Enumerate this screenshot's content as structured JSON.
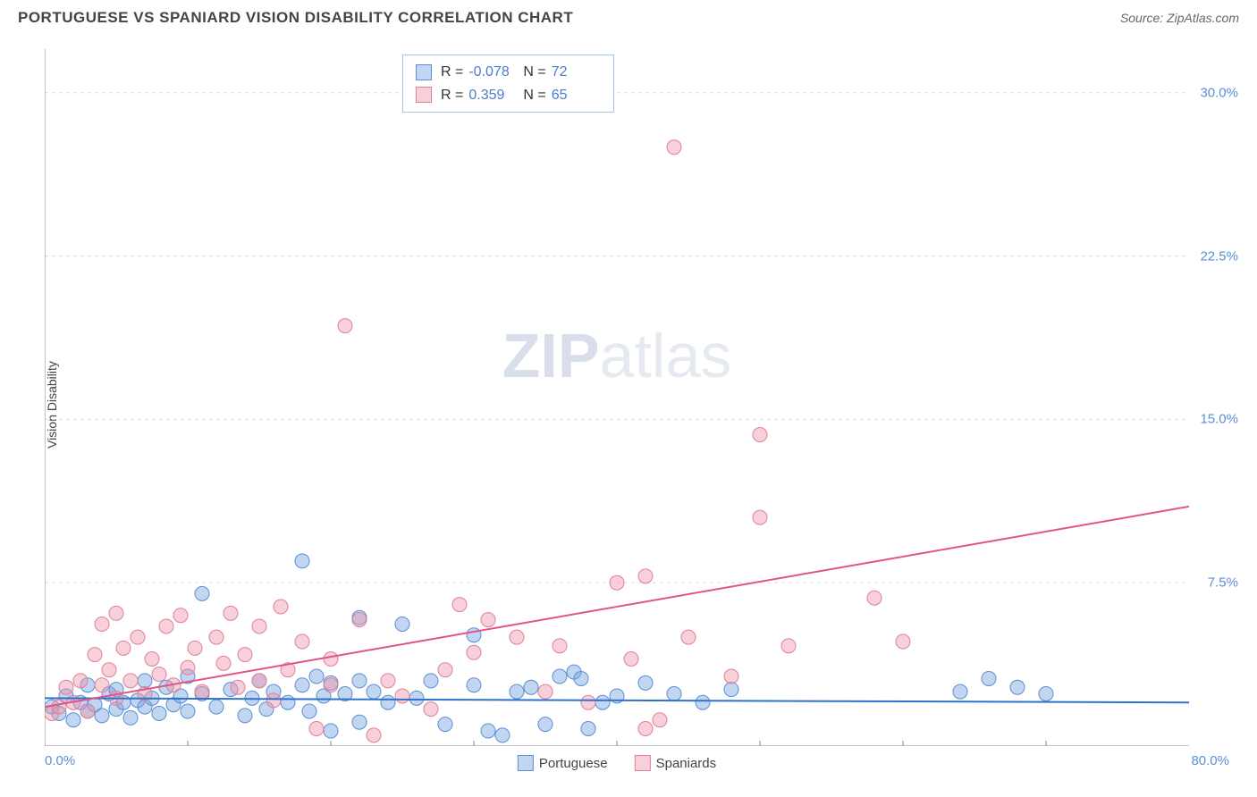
{
  "header": {
    "title": "PORTUGUESE VS SPANIARD VISION DISABILITY CORRELATION CHART",
    "source": "Source: ZipAtlas.com"
  },
  "ylabel": "Vision Disability",
  "watermark": {
    "bold": "ZIP",
    "rest": "atlas"
  },
  "chart": {
    "type": "scatter",
    "xlim": [
      0,
      80
    ],
    "ylim": [
      0,
      32
    ],
    "yticks": [
      {
        "v": 7.5,
        "label": "7.5%"
      },
      {
        "v": 15.0,
        "label": "15.0%"
      },
      {
        "v": 22.5,
        "label": "22.5%"
      },
      {
        "v": 30.0,
        "label": "30.0%"
      }
    ],
    "xticks_minor": [
      10,
      20,
      30,
      40,
      50,
      60,
      70
    ],
    "xlabel_min": "0.0%",
    "xlabel_max": "80.0%",
    "background_color": "#ffffff",
    "grid_color": "#dddddd",
    "series": [
      {
        "name": "Portuguese",
        "fill": "rgba(120,165,225,0.45)",
        "stroke": "#5a8fd6",
        "marker_r": 8,
        "line_color": "#2f72c9",
        "trend": {
          "x1": 0,
          "y1": 2.2,
          "x2": 80,
          "y2": 2.0
        },
        "points": [
          [
            0.5,
            1.8
          ],
          [
            1,
            1.5
          ],
          [
            1.5,
            2.3
          ],
          [
            2,
            1.2
          ],
          [
            2.5,
            2.0
          ],
          [
            3,
            1.6
          ],
          [
            3,
            2.8
          ],
          [
            3.5,
            1.9
          ],
          [
            4,
            1.4
          ],
          [
            4.5,
            2.4
          ],
          [
            5,
            1.7
          ],
          [
            5,
            2.6
          ],
          [
            5.5,
            2.0
          ],
          [
            6,
            1.3
          ],
          [
            6.5,
            2.1
          ],
          [
            7,
            1.8
          ],
          [
            7,
            3.0
          ],
          [
            7.5,
            2.2
          ],
          [
            8,
            1.5
          ],
          [
            8.5,
            2.7
          ],
          [
            9,
            1.9
          ],
          [
            9.5,
            2.3
          ],
          [
            10,
            1.6
          ],
          [
            10,
            3.2
          ],
          [
            11,
            7.0
          ],
          [
            11,
            2.4
          ],
          [
            12,
            1.8
          ],
          [
            13,
            2.6
          ],
          [
            14,
            1.4
          ],
          [
            14.5,
            2.2
          ],
          [
            15,
            3.0
          ],
          [
            15.5,
            1.7
          ],
          [
            16,
            2.5
          ],
          [
            17,
            2.0
          ],
          [
            18,
            8.5
          ],
          [
            18,
            2.8
          ],
          [
            18.5,
            1.6
          ],
          [
            19,
            3.2
          ],
          [
            19.5,
            2.3
          ],
          [
            20,
            2.9
          ],
          [
            20,
            0.7
          ],
          [
            21,
            2.4
          ],
          [
            22,
            3.0
          ],
          [
            22,
            1.1
          ],
          [
            22,
            5.9
          ],
          [
            23,
            2.5
          ],
          [
            24,
            2.0
          ],
          [
            25,
            5.6
          ],
          [
            26,
            2.2
          ],
          [
            27,
            3.0
          ],
          [
            28,
            1.0
          ],
          [
            30,
            5.1
          ],
          [
            30,
            2.8
          ],
          [
            31,
            0.7
          ],
          [
            32,
            0.5
          ],
          [
            33,
            2.5
          ],
          [
            34,
            2.7
          ],
          [
            35,
            1.0
          ],
          [
            36,
            3.2
          ],
          [
            37,
            3.4
          ],
          [
            37.5,
            3.1
          ],
          [
            38,
            0.8
          ],
          [
            39,
            2.0
          ],
          [
            40,
            2.3
          ],
          [
            42,
            2.9
          ],
          [
            44,
            2.4
          ],
          [
            46,
            2.0
          ],
          [
            48,
            2.6
          ],
          [
            64,
            2.5
          ],
          [
            66,
            3.1
          ],
          [
            68,
            2.7
          ],
          [
            70,
            2.4
          ]
        ]
      },
      {
        "name": "Spaniards",
        "fill": "rgba(240,150,170,0.45)",
        "stroke": "#e07f9a",
        "marker_r": 8,
        "line_color": "#e05585",
        "trend": {
          "x1": 0,
          "y1": 1.8,
          "x2": 80,
          "y2": 11.0
        },
        "points": [
          [
            0.5,
            1.5
          ],
          [
            1,
            1.8
          ],
          [
            1.5,
            2.7
          ],
          [
            2,
            2.0
          ],
          [
            2.5,
            3.0
          ],
          [
            3,
            1.6
          ],
          [
            3.5,
            4.2
          ],
          [
            4,
            2.8
          ],
          [
            4,
            5.6
          ],
          [
            4.5,
            3.5
          ],
          [
            5,
            2.2
          ],
          [
            5,
            6.1
          ],
          [
            5.5,
            4.5
          ],
          [
            6,
            3.0
          ],
          [
            6.5,
            5.0
          ],
          [
            7,
            2.4
          ],
          [
            7.5,
            4.0
          ],
          [
            8,
            3.3
          ],
          [
            8.5,
            5.5
          ],
          [
            9,
            2.8
          ],
          [
            9.5,
            6.0
          ],
          [
            10,
            3.6
          ],
          [
            10.5,
            4.5
          ],
          [
            11,
            2.5
          ],
          [
            12,
            5.0
          ],
          [
            12.5,
            3.8
          ],
          [
            13,
            6.1
          ],
          [
            13.5,
            2.7
          ],
          [
            14,
            4.2
          ],
          [
            15,
            5.5
          ],
          [
            15,
            3.0
          ],
          [
            16,
            2.1
          ],
          [
            16.5,
            6.4
          ],
          [
            17,
            3.5
          ],
          [
            18,
            4.8
          ],
          [
            19,
            0.8
          ],
          [
            20,
            2.8
          ],
          [
            20,
            4.0
          ],
          [
            21,
            19.3
          ],
          [
            22,
            5.8
          ],
          [
            23,
            0.5
          ],
          [
            24,
            3.0
          ],
          [
            25,
            2.3
          ],
          [
            27,
            1.7
          ],
          [
            28,
            3.5
          ],
          [
            29,
            6.5
          ],
          [
            30,
            4.3
          ],
          [
            31,
            5.8
          ],
          [
            33,
            5.0
          ],
          [
            35,
            2.5
          ],
          [
            36,
            4.6
          ],
          [
            38,
            2.0
          ],
          [
            40,
            7.5
          ],
          [
            41,
            4.0
          ],
          [
            42,
            7.8
          ],
          [
            43,
            1.2
          ],
          [
            44,
            27.5
          ],
          [
            45,
            5.0
          ],
          [
            48,
            3.2
          ],
          [
            50,
            10.5
          ],
          [
            50,
            14.3
          ],
          [
            52,
            4.6
          ],
          [
            58,
            6.8
          ],
          [
            60,
            4.8
          ],
          [
            42,
            0.8
          ]
        ]
      }
    ]
  },
  "stats": [
    {
      "sw_fill": "rgba(120,165,225,0.45)",
      "sw_stroke": "#5a8fd6",
      "r": "-0.078",
      "n": "72"
    },
    {
      "sw_fill": "rgba(240,150,170,0.45)",
      "sw_stroke": "#e07f9a",
      "r": "0.359",
      "n": "65"
    }
  ],
  "bottom_legend": [
    {
      "sw_fill": "rgba(120,165,225,0.45)",
      "sw_stroke": "#5a8fd6",
      "label": "Portuguese"
    },
    {
      "sw_fill": "rgba(240,150,170,0.45)",
      "sw_stroke": "#e07f9a",
      "label": "Spaniards"
    }
  ]
}
